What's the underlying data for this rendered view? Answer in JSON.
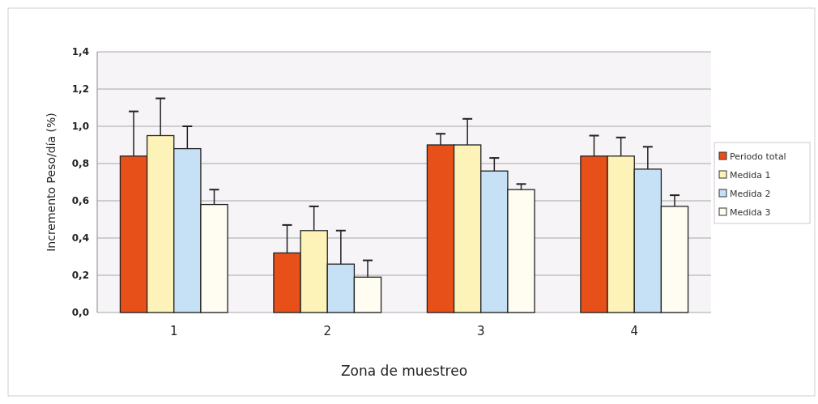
{
  "chart_data": {
    "type": "bar",
    "xlabel": "Zona de muestreo",
    "ylabel": "Incremento Peso/día (%)",
    "categories": [
      "1",
      "2",
      "3",
      "4"
    ],
    "series": [
      {
        "name": "Periodo total",
        "color": "#e8501a",
        "values": [
          0.84,
          0.32,
          0.9,
          0.84
        ],
        "errors": [
          [
            0.84,
            1.08
          ],
          [
            0.32,
            0.47
          ],
          [
            0.9,
            0.96
          ],
          [
            0.84,
            0.95
          ]
        ]
      },
      {
        "name": "Medida 1",
        "color": "#fdf3b8",
        "values": [
          0.95,
          0.44,
          0.9,
          0.84
        ],
        "errors": [
          [
            0.95,
            1.15
          ],
          [
            0.44,
            0.57
          ],
          [
            0.9,
            1.04
          ],
          [
            0.84,
            0.94
          ]
        ]
      },
      {
        "name": "Medida 2",
        "color": "#c6e0f5",
        "values": [
          0.88,
          0.26,
          0.76,
          0.77
        ],
        "errors": [
          [
            0.88,
            1.0
          ],
          [
            0.26,
            0.44
          ],
          [
            0.76,
            0.83
          ],
          [
            0.77,
            0.89
          ]
        ]
      },
      {
        "name": "Medida 3",
        "color": "#fffdf2",
        "values": [
          0.58,
          0.19,
          0.66,
          0.57
        ],
        "errors": [
          [
            0.58,
            0.66
          ],
          [
            0.19,
            0.28
          ],
          [
            0.66,
            0.69
          ],
          [
            0.57,
            0.63
          ]
        ]
      }
    ],
    "ylim": [
      0,
      1.4
    ],
    "yticks": [
      {
        "value": 0,
        "label": "0,0"
      },
      {
        "value": 0.2,
        "label": "0,2"
      },
      {
        "value": 0.4,
        "label": "0,4"
      },
      {
        "value": 0.6,
        "label": "0,6"
      },
      {
        "value": 0.8,
        "label": "0,8"
      },
      {
        "value": 1.0,
        "label": "1,0"
      },
      {
        "value": 1.2,
        "label": "1,2"
      },
      {
        "value": 1.4,
        "label": "1,4"
      }
    ],
    "grid": "y",
    "legend": "right"
  }
}
